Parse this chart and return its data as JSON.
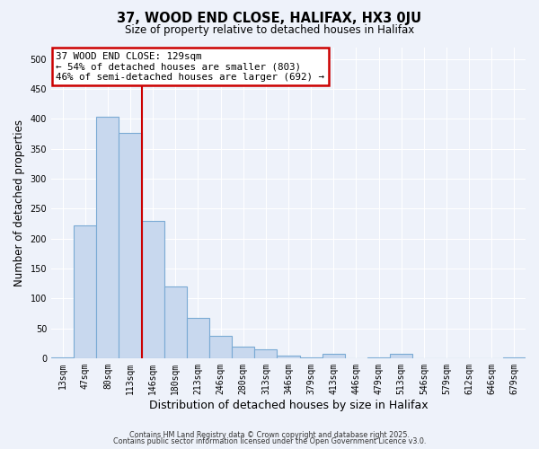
{
  "title": "37, WOOD END CLOSE, HALIFAX, HX3 0JU",
  "subtitle": "Size of property relative to detached houses in Halifax",
  "xlabel": "Distribution of detached houses by size in Halifax",
  "ylabel": "Number of detached properties",
  "bar_labels": [
    "13sqm",
    "47sqm",
    "80sqm",
    "113sqm",
    "146sqm",
    "180sqm",
    "213sqm",
    "246sqm",
    "280sqm",
    "313sqm",
    "346sqm",
    "379sqm",
    "413sqm",
    "446sqm",
    "479sqm",
    "513sqm",
    "546sqm",
    "579sqm",
    "612sqm",
    "646sqm",
    "679sqm"
  ],
  "bar_values": [
    2,
    222,
    403,
    376,
    230,
    120,
    68,
    38,
    20,
    15,
    5,
    2,
    7,
    0,
    2,
    7,
    0,
    0,
    0,
    0,
    2
  ],
  "bar_color": "#c8d8ee",
  "bar_edgecolor": "#7aaad4",
  "vline_x_idx": 3,
  "vline_color": "#cc0000",
  "annotation_text": "37 WOOD END CLOSE: 129sqm\n← 54% of detached houses are smaller (803)\n46% of semi-detached houses are larger (692) →",
  "annotation_box_edgecolor": "#cc0000",
  "annotation_box_facecolor": "#ffffff",
  "ylim": [
    0,
    520
  ],
  "yticks": [
    0,
    50,
    100,
    150,
    200,
    250,
    300,
    350,
    400,
    450,
    500
  ],
  "bg_color": "#eef2fa",
  "grid_color": "#ffffff",
  "footer_line1": "Contains HM Land Registry data © Crown copyright and database right 2025.",
  "footer_line2": "Contains public sector information licensed under the Open Government Licence v3.0."
}
